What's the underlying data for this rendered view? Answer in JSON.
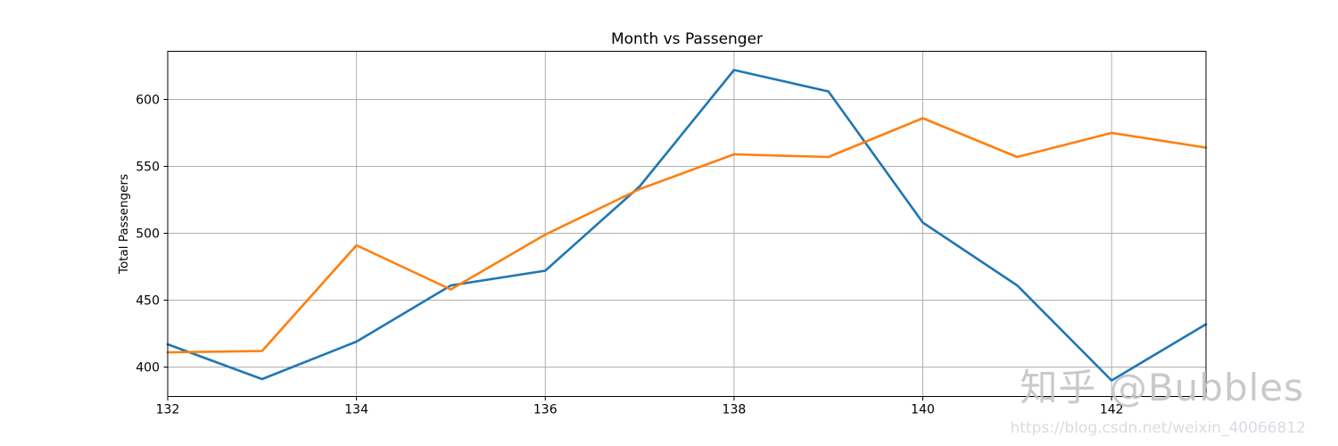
{
  "chart_data": {
    "type": "line",
    "title": "Month vs Passenger",
    "xlabel": "",
    "ylabel": "Total Passengers",
    "x": [
      132,
      133,
      134,
      135,
      136,
      137,
      138,
      139,
      140,
      141,
      142,
      143
    ],
    "series": [
      {
        "name": "blue-series",
        "color": "#1f77b4",
        "values": [
          417,
          391,
          419,
          461,
          472,
          535,
          622,
          606,
          508,
          461,
          390,
          432
        ]
      },
      {
        "name": "orange-series",
        "color": "#ff7f0e",
        "values": [
          411,
          412,
          491,
          458,
          499,
          533,
          559,
          557,
          586,
          557,
          575,
          564
        ]
      }
    ],
    "xticks": [
      132,
      134,
      136,
      138,
      140,
      142
    ],
    "yticks": [
      400,
      450,
      500,
      550,
      600
    ],
    "xlim": [
      132,
      143
    ],
    "ylim": [
      378,
      636
    ],
    "grid": true,
    "legend_position": "none",
    "grid_color": "#b0b0b0",
    "axis_color": "#000000"
  },
  "watermark": {
    "title": "知乎 @Bubbles",
    "url": "https://blog.csdn.net/weixin_40066812"
  }
}
